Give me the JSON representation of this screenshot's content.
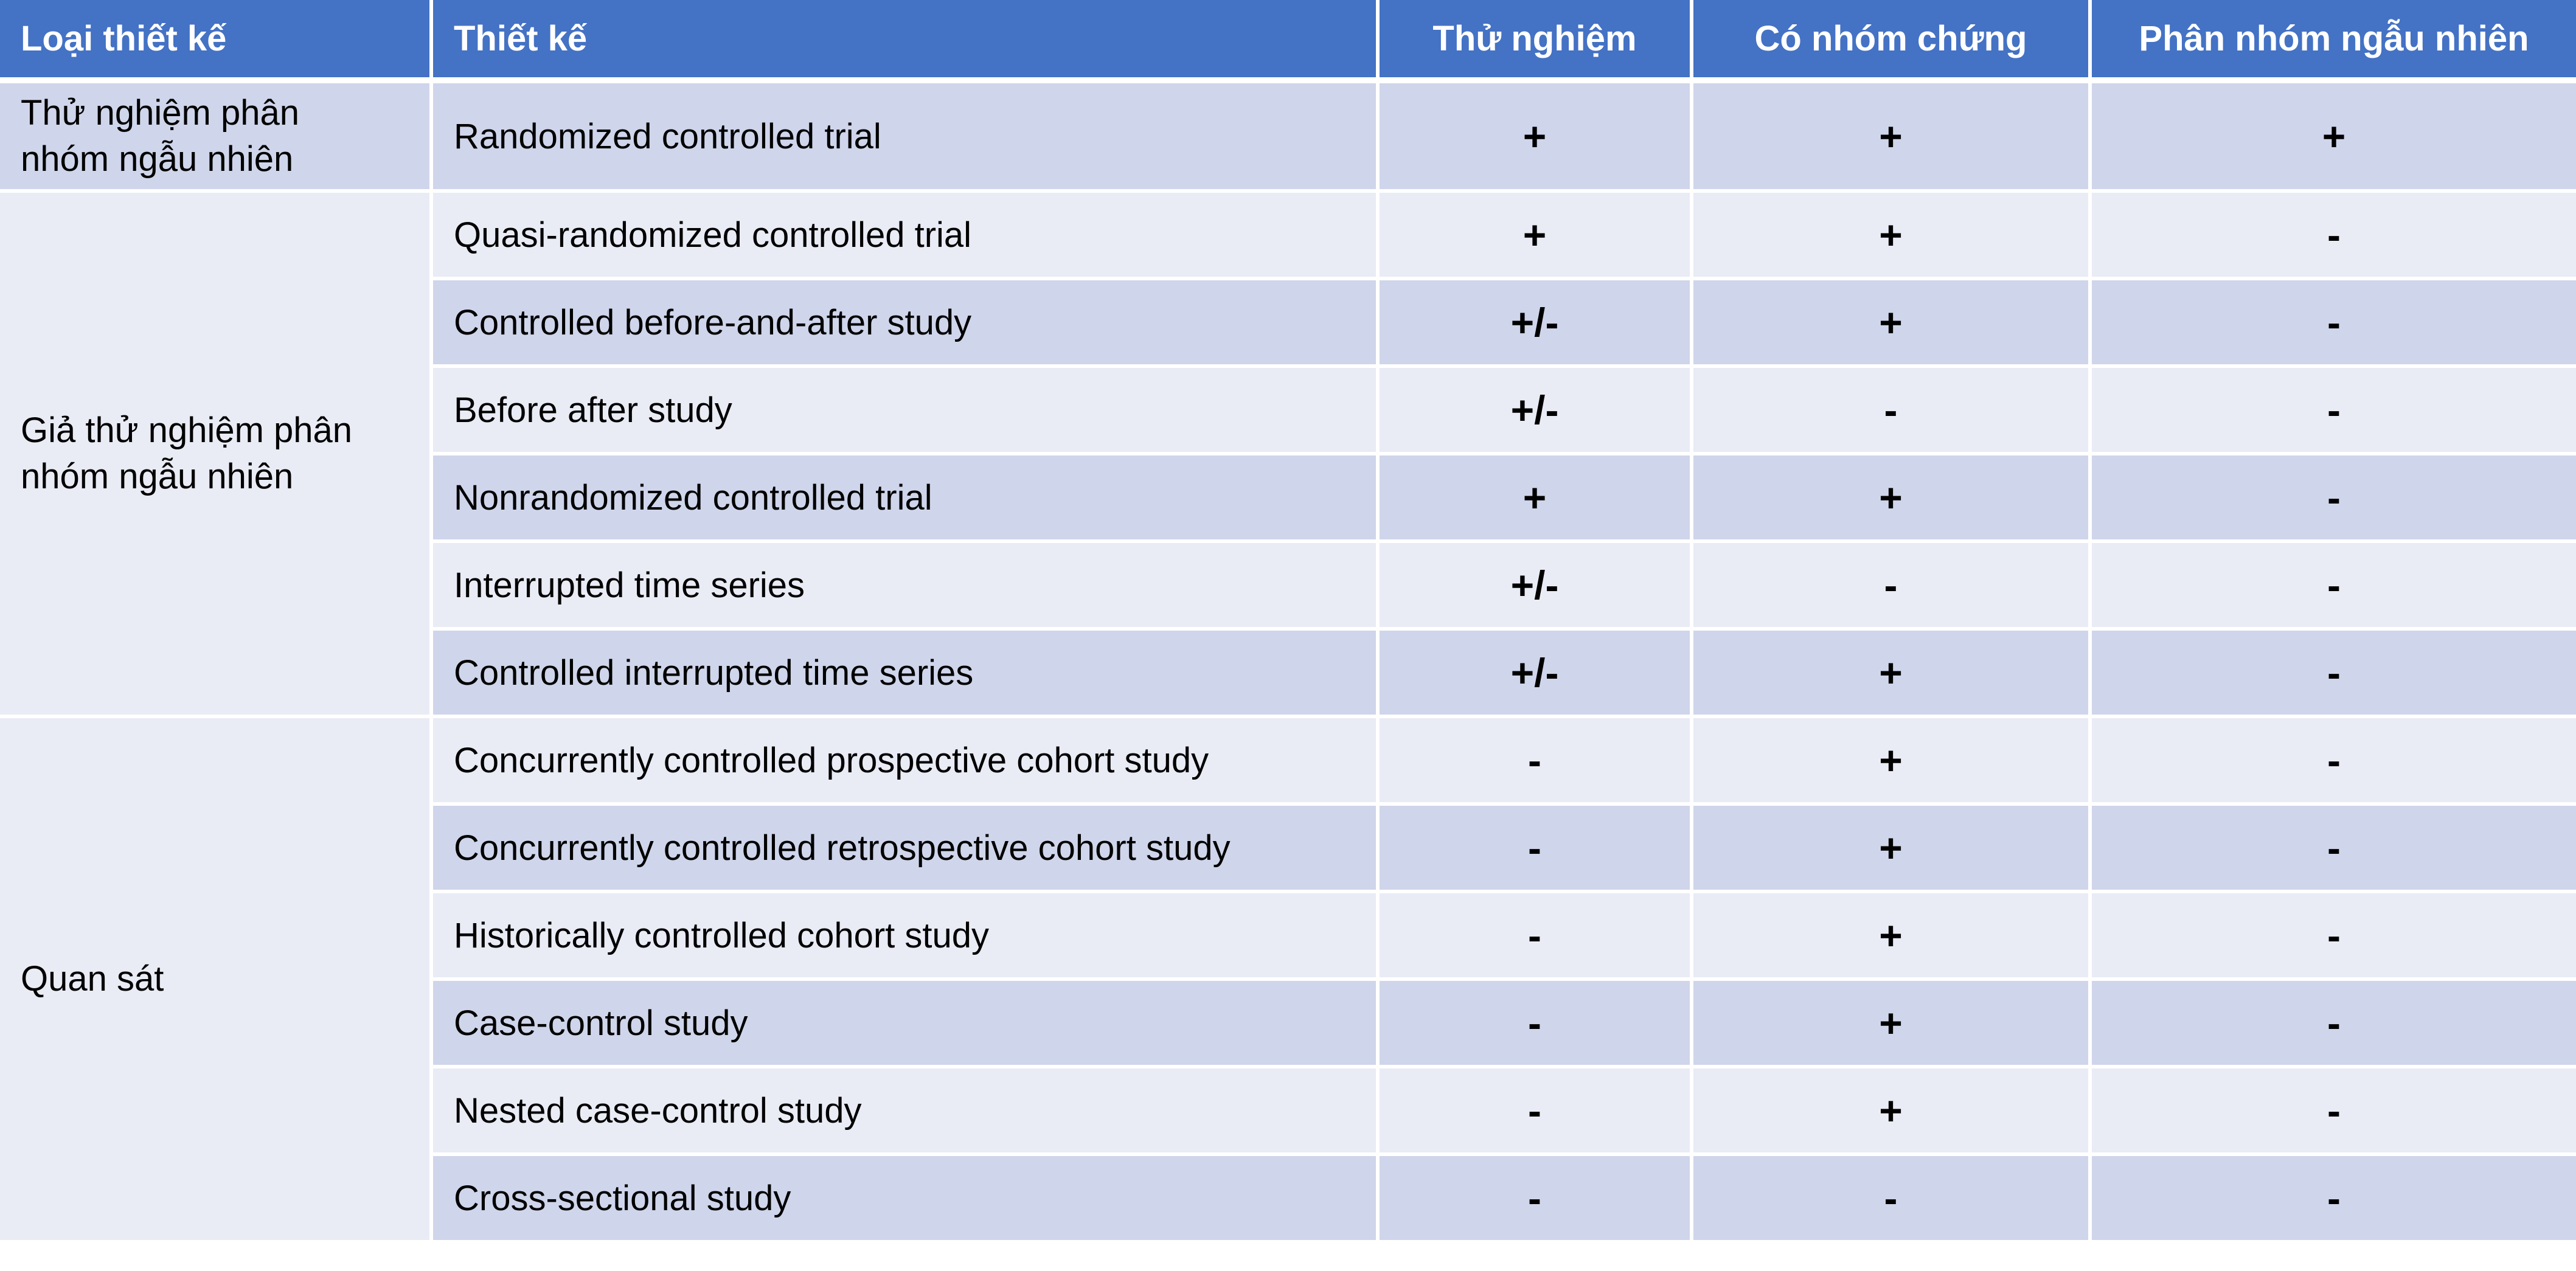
{
  "headers": {
    "category": "Loại thiết kế",
    "design": "Thiết kế",
    "experimental": "Thử nghiệm",
    "control_group": "Có nhóm chứng",
    "randomization": "Phân nhóm ngẫu nhiên"
  },
  "colors": {
    "header_bg": "#4472c4",
    "row_dark": "#cfd5ea",
    "row_light": "#e9ebf5",
    "header_text": "#ffffff"
  },
  "categories": [
    {
      "label": "Thử nghiệm phân\nnhóm ngẫu nhiên",
      "rowspan": 1
    },
    {
      "label": "Giả thử nghiệm phân\nnhóm ngẫu nhiên",
      "rowspan": 6
    },
    {
      "label": "Quan sát",
      "rowspan": 6
    }
  ],
  "rows": [
    {
      "design": "Randomized controlled trial",
      "experimental": "+",
      "control_group": "+",
      "randomization": "+"
    },
    {
      "design": "Quasi-randomized controlled trial",
      "experimental": "+",
      "control_group": "+",
      "randomization": "-"
    },
    {
      "design": "Controlled before-and-after study",
      "experimental": "+/-",
      "control_group": "+",
      "randomization": "-"
    },
    {
      "design": "Before after study",
      "experimental": "+/-",
      "control_group": "-",
      "randomization": "-"
    },
    {
      "design": "Nonrandomized controlled trial",
      "experimental": "+",
      "control_group": "+",
      "randomization": "-"
    },
    {
      "design": "Interrupted time series",
      "experimental": "+/-",
      "control_group": "-",
      "randomization": "-"
    },
    {
      "design": "Controlled interrupted time series",
      "experimental": "+/-",
      "control_group": "+",
      "randomization": "-"
    },
    {
      "design": "Concurrently controlled prospective cohort study",
      "experimental": "-",
      "control_group": "+",
      "randomization": "-"
    },
    {
      "design": "Concurrently controlled retrospective cohort study",
      "experimental": "-",
      "control_group": "+",
      "randomization": "-"
    },
    {
      "design": "Historically controlled cohort study",
      "experimental": "-",
      "control_group": "+",
      "randomization": "-"
    },
    {
      "design": "Case-control study",
      "experimental": "-",
      "control_group": "+",
      "randomization": "-"
    },
    {
      "design": "Nested case-control study",
      "experimental": "-",
      "control_group": "+",
      "randomization": "-"
    },
    {
      "design": "Cross-sectional study",
      "experimental": "-",
      "control_group": "-",
      "randomization": "-"
    }
  ]
}
